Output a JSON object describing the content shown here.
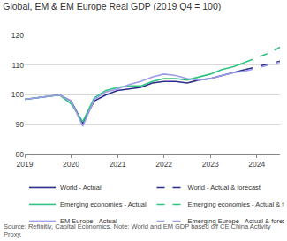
{
  "chart_data": {
    "type": "line",
    "title": "Global, EM & EM Europe Real GDP (2019 Q4 = 100)",
    "source": "Source: Refinitiv, Capital Economics. Note: World and EM GDP based off CE China Activity Proxy.",
    "x": [
      2019.0,
      2019.25,
      2019.5,
      2019.75,
      2020.0,
      2020.25,
      2020.5,
      2020.75,
      2021.0,
      2021.25,
      2021.5,
      2021.75,
      2022.0,
      2022.25,
      2022.5,
      2022.75,
      2023.0,
      2023.25,
      2023.5,
      2023.75,
      2024.0,
      2024.25,
      2024.5
    ],
    "series": [
      {
        "name": "World - Actual",
        "color": "#2b2c8c",
        "line_style": "solid",
        "values": [
          98.5,
          99,
          99.5,
          100,
          98,
          90.5,
          98,
          100,
          101.5,
          102,
          102.5,
          104,
          104.5,
          104.5,
          104,
          105,
          105.5,
          106.5,
          107.5,
          108.5,
          null,
          null,
          null
        ]
      },
      {
        "name": "World - Actual & forecast",
        "color": "#2b2c8c",
        "line_style": "dash",
        "values": [
          null,
          null,
          null,
          null,
          null,
          null,
          null,
          null,
          null,
          null,
          null,
          null,
          null,
          null,
          null,
          null,
          null,
          null,
          null,
          108.5,
          109.5,
          110.5,
          111.3
        ]
      },
      {
        "name": "Emerging economies - Actual",
        "color": "#2fc47f",
        "line_style": "solid",
        "values": [
          98.5,
          99,
          99.5,
          100,
          97,
          91,
          99,
          101.5,
          102.5,
          103,
          103,
          104.5,
          105.5,
          105.5,
          105,
          106,
          107,
          108.5,
          109.5,
          111,
          null,
          null,
          null
        ]
      },
      {
        "name": "Emerging economies - Actual & forecast",
        "color": "#2fc47f",
        "line_style": "dash",
        "values": [
          null,
          null,
          null,
          null,
          null,
          null,
          null,
          null,
          null,
          null,
          null,
          null,
          null,
          null,
          null,
          null,
          null,
          null,
          null,
          111,
          112.5,
          114,
          116
        ]
      },
      {
        "name": "EM Europe - Actual",
        "color": "#9c9deb",
        "line_style": "solid",
        "values": [
          98.5,
          99,
          99.5,
          100,
          98,
          89.5,
          98.5,
          101,
          102,
          103.5,
          104.5,
          106,
          107,
          106.5,
          105.5,
          105,
          105.5,
          106.5,
          107.5,
          108,
          null,
          null,
          null
        ]
      },
      {
        "name": "Emerging Europe - Actual & forecast",
        "color": "#9c9deb",
        "line_style": "dash",
        "values": [
          null,
          null,
          null,
          null,
          null,
          null,
          null,
          null,
          null,
          null,
          null,
          null,
          null,
          null,
          null,
          null,
          null,
          null,
          null,
          108,
          109,
          110,
          111
        ]
      }
    ],
    "xlim": [
      2019,
      2024.5
    ],
    "xticks": [
      2019,
      2020,
      2021,
      2022,
      2023,
      2024
    ],
    "ylim": [
      80,
      120
    ],
    "yticks": [
      80,
      90,
      100,
      110,
      120
    ],
    "grid": true,
    "legend": "bottom"
  }
}
